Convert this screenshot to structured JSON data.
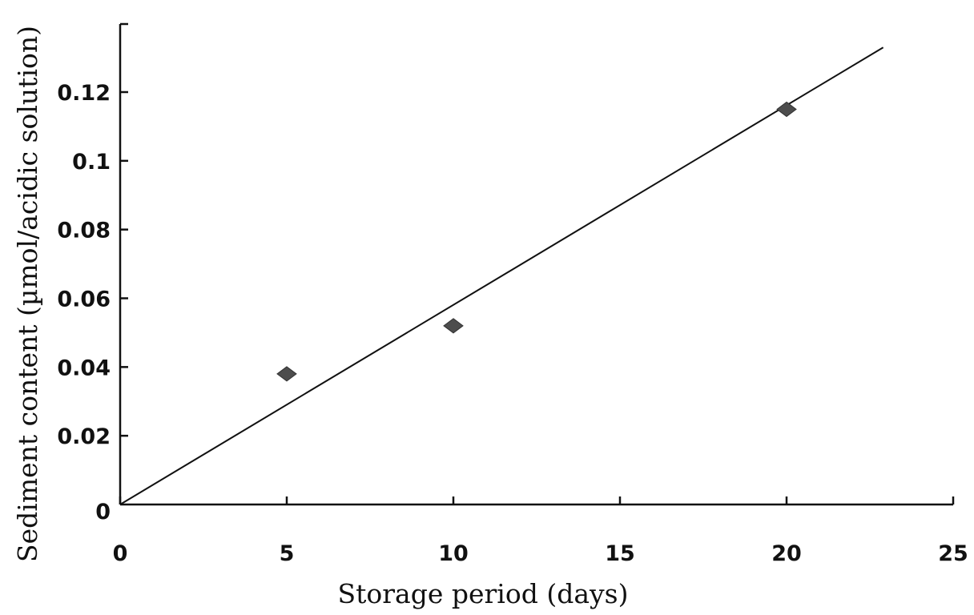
{
  "chart_data": {
    "type": "scatter",
    "title": "",
    "xlabel": "Storage period (days)",
    "ylabel": "Sediment content (µmol/acidic solution)",
    "xlim": [
      0,
      25
    ],
    "ylim": [
      0,
      0.13
    ],
    "x_ticks": [
      0,
      5,
      10,
      15,
      20,
      25
    ],
    "x_tick_labels": [
      "0",
      "5",
      "10",
      "15",
      "20",
      "25"
    ],
    "y_ticks": [
      0,
      0.02,
      0.04,
      0.06,
      0.08,
      0.1,
      0.12
    ],
    "y_tick_labels": [
      "0",
      "0.02",
      "0.04",
      "0.06",
      "0.08",
      "0.1",
      "0.12"
    ],
    "grid": false,
    "series": [
      {
        "marker": "diamond",
        "color": "#4d4d4d",
        "x": [
          5,
          10,
          20
        ],
        "y": [
          0.038,
          0.052,
          0.115
        ]
      }
    ],
    "trendline": {
      "type": "linear",
      "x": [
        0,
        22.9
      ],
      "y": [
        0,
        0.133
      ],
      "color": "#111111"
    }
  }
}
